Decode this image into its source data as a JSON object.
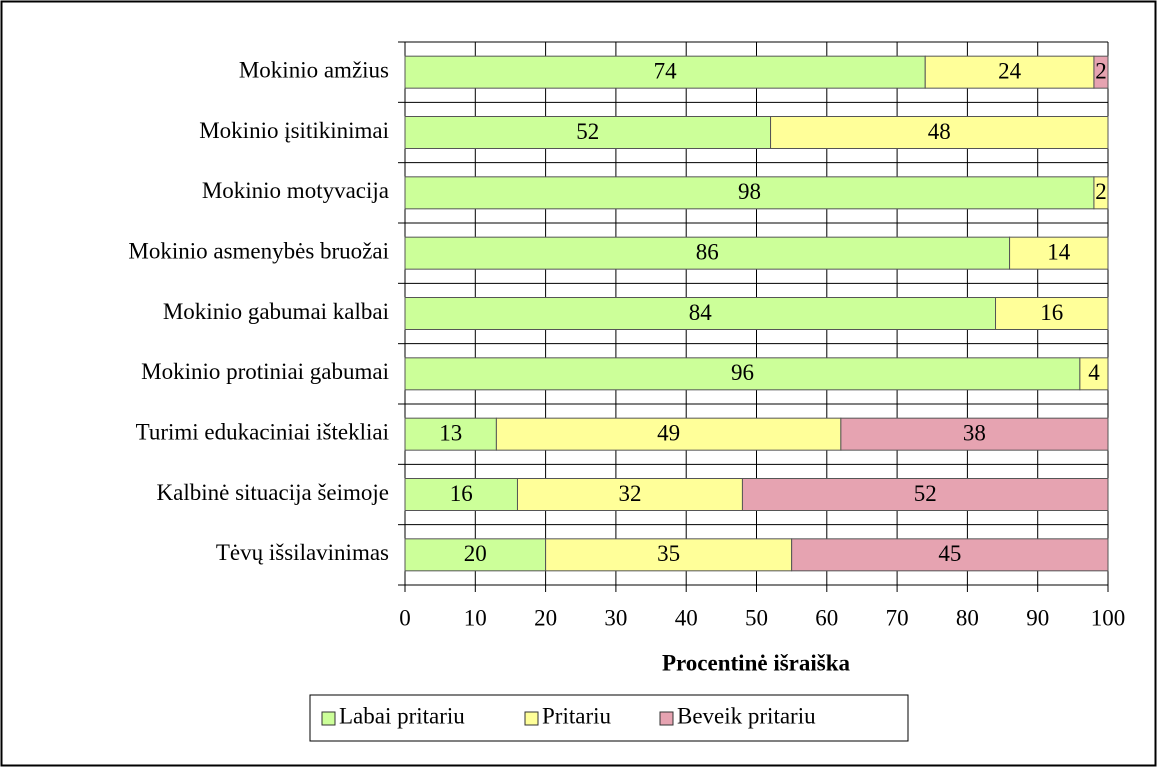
{
  "chart_data": {
    "type": "stacked-barh",
    "categories": [
      "Mokinio amžius",
      "Mokinio įsitikinimai",
      "Mokinio motyvacija",
      "Mokinio asmenybės bruožai",
      "Mokinio gabumai kalbai",
      "Mokinio protiniai gabumai",
      "Turimi edukaciniai ištekliai",
      "Kalbinė situacija šeimoje",
      "Tėvų išsilavinimas"
    ],
    "series": [
      {
        "name": "Labai pritariu",
        "color": "#ccff99",
        "values": [
          74,
          52,
          98,
          86,
          84,
          96,
          13,
          16,
          20
        ]
      },
      {
        "name": "Pritariu",
        "color": "#ffff99",
        "values": [
          24,
          48,
          2,
          14,
          16,
          4,
          49,
          32,
          35
        ]
      },
      {
        "name": "Beveik pritariu",
        "color": "#e6a3b1",
        "values": [
          2,
          0,
          0,
          0,
          0,
          0,
          38,
          52,
          45
        ]
      }
    ],
    "xlabel": "Procentinė išraiška",
    "xlim": [
      0,
      100
    ],
    "xticks": [
      0,
      10,
      20,
      30,
      40,
      50,
      60,
      70,
      80,
      90,
      100
    ],
    "grid": true,
    "legend": "bottom"
  }
}
